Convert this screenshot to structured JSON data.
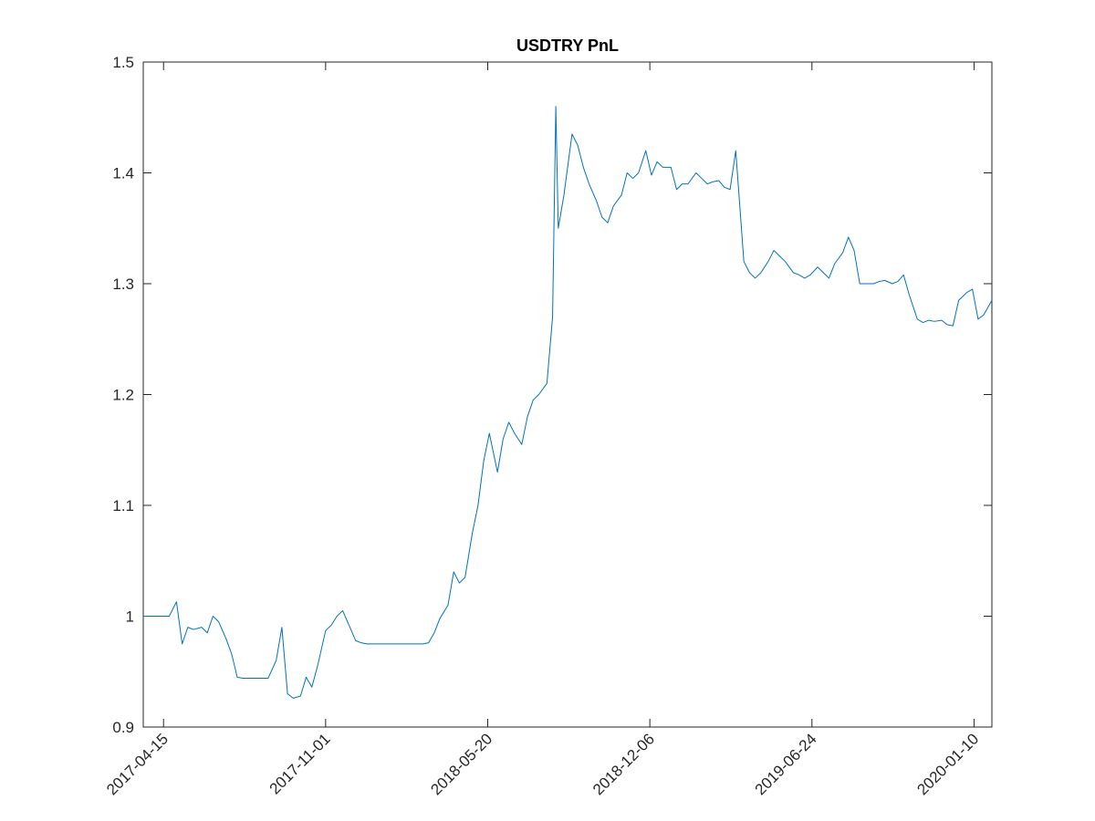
{
  "chart_data": {
    "type": "line",
    "title": "USDTRY PnL",
    "x": [
      "2017-03-21",
      "2017-04-01",
      "2017-04-08",
      "2017-04-15",
      "2017-04-22",
      "2017-05-01",
      "2017-05-08",
      "2017-05-15",
      "2017-05-22",
      "2017-06-01",
      "2017-06-08",
      "2017-06-15",
      "2017-06-22",
      "2017-07-01",
      "2017-07-08",
      "2017-07-15",
      "2017-07-22",
      "2017-08-01",
      "2017-08-08",
      "2017-08-15",
      "2017-08-22",
      "2017-09-01",
      "2017-09-08",
      "2017-09-15",
      "2017-09-22",
      "2017-10-01",
      "2017-10-08",
      "2017-10-15",
      "2017-10-22",
      "2017-11-01",
      "2017-11-08",
      "2017-11-15",
      "2017-11-22",
      "2017-12-01",
      "2017-12-08",
      "2017-12-15",
      "2017-12-22",
      "2018-01-01",
      "2018-01-15",
      "2018-02-01",
      "2018-02-15",
      "2018-03-01",
      "2018-03-08",
      "2018-03-15",
      "2018-03-22",
      "2018-04-01",
      "2018-04-08",
      "2018-04-15",
      "2018-04-22",
      "2018-05-01",
      "2018-05-08",
      "2018-05-15",
      "2018-05-22",
      "2018-06-01",
      "2018-06-08",
      "2018-06-15",
      "2018-06-22",
      "2018-07-01",
      "2018-07-08",
      "2018-07-15",
      "2018-07-22",
      "2018-08-01",
      "2018-08-08",
      "2018-08-12",
      "2018-08-15",
      "2018-08-22",
      "2018-09-01",
      "2018-09-08",
      "2018-09-15",
      "2018-09-22",
      "2018-10-01",
      "2018-10-08",
      "2018-10-15",
      "2018-10-22",
      "2018-11-01",
      "2018-11-08",
      "2018-11-15",
      "2018-11-22",
      "2018-12-01",
      "2018-12-08",
      "2018-12-15",
      "2018-12-22",
      "2019-01-01",
      "2019-01-08",
      "2019-01-15",
      "2019-01-22",
      "2019-02-01",
      "2019-02-08",
      "2019-02-15",
      "2019-02-22",
      "2019-03-01",
      "2019-03-08",
      "2019-03-15",
      "2019-03-22",
      "2019-04-01",
      "2019-04-08",
      "2019-04-15",
      "2019-04-22",
      "2019-05-01",
      "2019-05-08",
      "2019-05-15",
      "2019-05-22",
      "2019-06-01",
      "2019-06-08",
      "2019-06-15",
      "2019-06-22",
      "2019-07-01",
      "2019-07-08",
      "2019-07-15",
      "2019-07-22",
      "2019-08-01",
      "2019-08-08",
      "2019-08-15",
      "2019-08-22",
      "2019-09-01",
      "2019-09-08",
      "2019-09-15",
      "2019-09-22",
      "2019-10-01",
      "2019-10-08",
      "2019-10-15",
      "2019-10-22",
      "2019-11-01",
      "2019-11-08",
      "2019-11-15",
      "2019-11-22",
      "2019-12-01",
      "2019-12-08",
      "2019-12-15",
      "2019-12-22",
      "2020-01-01",
      "2020-01-08",
      "2020-01-15",
      "2020-01-22",
      "2020-02-01"
    ],
    "series": [
      {
        "color": "#0072bd",
        "values": [
          1.0,
          1.0,
          1.0,
          1.0,
          1.0,
          1.013,
          0.975,
          0.99,
          0.988,
          0.99,
          0.985,
          1.0,
          0.995,
          0.98,
          0.966,
          0.945,
          0.944,
          0.944,
          0.944,
          0.944,
          0.944,
          0.96,
          0.99,
          0.93,
          0.926,
          0.928,
          0.945,
          0.936,
          0.955,
          0.987,
          0.992,
          1.0,
          1.005,
          0.99,
          0.978,
          0.976,
          0.975,
          0.975,
          0.975,
          0.975,
          0.975,
          0.975,
          0.976,
          0.985,
          0.998,
          1.01,
          1.04,
          1.03,
          1.035,
          1.075,
          1.1,
          1.14,
          1.165,
          1.13,
          1.16,
          1.175,
          1.165,
          1.155,
          1.18,
          1.195,
          1.2,
          1.21,
          1.27,
          1.46,
          1.35,
          1.38,
          1.435,
          1.425,
          1.405,
          1.39,
          1.375,
          1.36,
          1.355,
          1.37,
          1.38,
          1.4,
          1.395,
          1.4,
          1.42,
          1.398,
          1.41,
          1.405,
          1.405,
          1.385,
          1.39,
          1.39,
          1.4,
          1.395,
          1.39,
          1.392,
          1.393,
          1.387,
          1.385,
          1.42,
          1.32,
          1.31,
          1.305,
          1.31,
          1.32,
          1.33,
          1.325,
          1.32,
          1.31,
          1.308,
          1.305,
          1.308,
          1.315,
          1.31,
          1.305,
          1.318,
          1.328,
          1.342,
          1.33,
          1.3,
          1.3,
          1.3,
          1.302,
          1.303,
          1.3,
          1.302,
          1.308,
          1.29,
          1.268,
          1.265,
          1.267,
          1.266,
          1.267,
          1.263,
          1.262,
          1.285,
          1.292,
          1.295,
          1.268,
          1.272,
          1.285
        ]
      }
    ],
    "xlim": [
      "2017-03-21",
      "2020-02-01"
    ],
    "xticks": [
      "2017-04-15",
      "2017-11-01",
      "2018-05-20",
      "2018-12-06",
      "2019-06-24",
      "2020-01-10"
    ],
    "ylim": [
      0.9,
      1.5
    ],
    "yticks": [
      0.9,
      1,
      1.1,
      1.2,
      1.3,
      1.4,
      1.5
    ]
  }
}
